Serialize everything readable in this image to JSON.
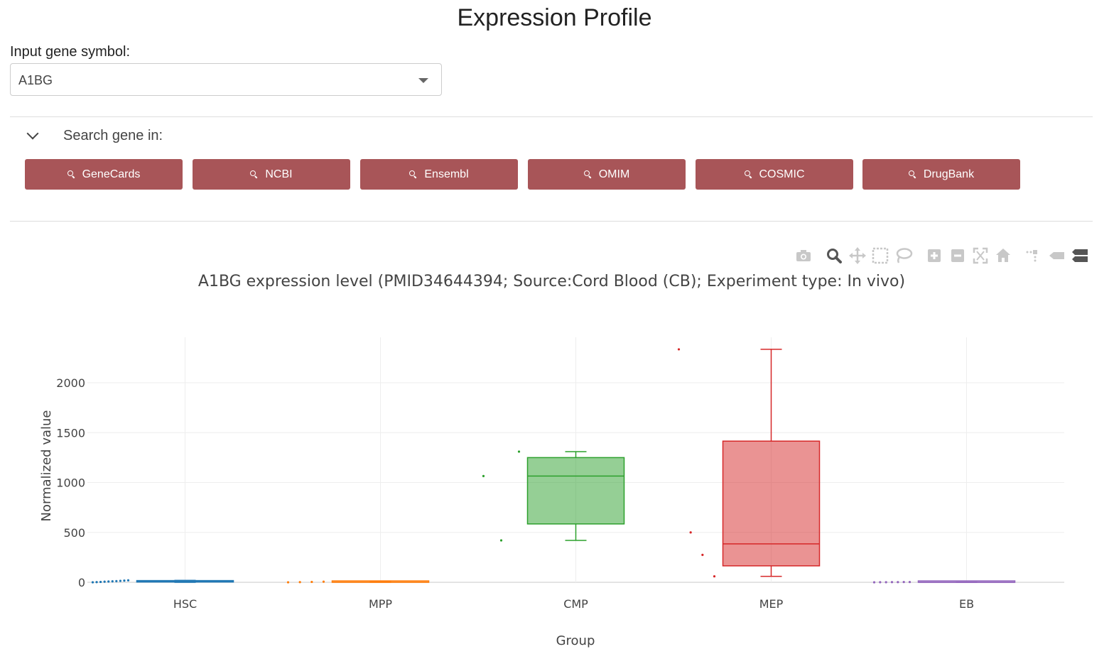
{
  "page": {
    "title": "Expression Profile"
  },
  "gene_input": {
    "label": "Input gene symbol:",
    "value": "A1BG"
  },
  "search_panel": {
    "label": "Search gene in:",
    "buttons": [
      "GeneCards",
      "NCBI",
      "Ensembl",
      "OMIM",
      "COSMIC",
      "DrugBank"
    ]
  },
  "modebar": {
    "icons": [
      "camera-icon",
      "zoom-icon",
      "pan-icon",
      "box-select-icon",
      "lasso-select-icon",
      "zoom-in-icon",
      "zoom-out-icon",
      "autoscale-icon",
      "reset-axes-icon",
      "spike-lines-icon",
      "hover-closest-icon",
      "hover-compare-icon"
    ]
  },
  "chart_data": {
    "type": "box",
    "title": "A1BG expression level (PMID34644394; Source:Cord Blood (CB); Experiment type: In vivo)",
    "xlabel": "Group",
    "ylabel": "Normalized value",
    "ylim": [
      -80,
      2480
    ],
    "yticks": [
      0,
      500,
      1000,
      1500,
      2000
    ],
    "grid": true,
    "categories": [
      "HSC",
      "MPP",
      "CMP",
      "MEP",
      "EB"
    ],
    "series": [
      {
        "category": "HSC",
        "color": "#1f77b4",
        "fill": "rgba(31,119,180,0.5)",
        "box": {
          "min": 0,
          "q1": 3,
          "median": 8,
          "q3": 14,
          "max": 20
        },
        "points": [
          0,
          2,
          4,
          6,
          8,
          10,
          12,
          14,
          17,
          20
        ]
      },
      {
        "category": "MPP",
        "color": "#ff7f0e",
        "fill": "rgba(255,127,14,0.5)",
        "box": {
          "min": 0,
          "q1": 0,
          "median": 2,
          "q3": 4,
          "max": 6
        },
        "points": [
          0,
          2,
          4,
          6
        ]
      },
      {
        "category": "CMP",
        "color": "#2ca02c",
        "fill": "rgba(44,160,44,0.5)",
        "box": {
          "min": 420,
          "q1": 585,
          "median": 1065,
          "q3": 1250,
          "max": 1310
        },
        "points": [
          1065,
          420,
          1310
        ]
      },
      {
        "category": "MEP",
        "color": "#d62728",
        "fill": "rgba(214,39,40,0.5)",
        "box": {
          "min": 60,
          "q1": 165,
          "median": 385,
          "q3": 1415,
          "max": 2335
        },
        "points": [
          2335,
          500,
          275,
          60
        ]
      },
      {
        "category": "EB",
        "color": "#9467bd",
        "fill": "rgba(148,103,189,0.5)",
        "box": {
          "min": 0,
          "q1": 0,
          "median": 0,
          "q3": 2,
          "max": 3
        },
        "points": [
          0,
          1,
          1,
          2,
          2,
          3,
          3
        ]
      }
    ]
  }
}
